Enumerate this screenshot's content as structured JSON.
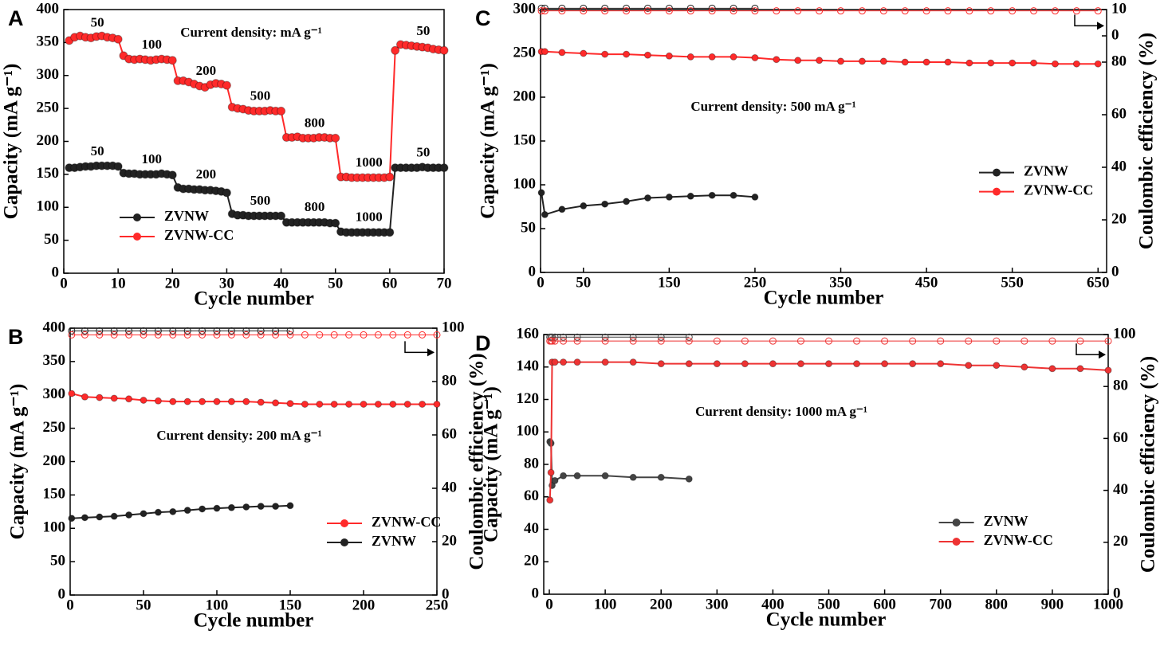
{
  "chart_data": [
    {
      "type": "line",
      "panel": "A",
      "annotation": "Current density: mA g⁻¹",
      "xlabel": "Cycle number",
      "ylabel": "Capacity (mA g⁻¹)",
      "xlim": [
        0,
        70
      ],
      "xticks": [
        0,
        10,
        20,
        30,
        40,
        50,
        60,
        70
      ],
      "ylim": [
        0,
        400
      ],
      "yticks": [
        0,
        50,
        100,
        150,
        200,
        250,
        300,
        350,
        400
      ],
      "legend": "lower left",
      "x": [
        1,
        2,
        3,
        4,
        5,
        6,
        7,
        8,
        9,
        10,
        11,
        12,
        13,
        14,
        15,
        16,
        17,
        18,
        19,
        20,
        21,
        22,
        23,
        24,
        25,
        26,
        27,
        28,
        29,
        30,
        31,
        32,
        33,
        34,
        35,
        36,
        37,
        38,
        39,
        40,
        41,
        42,
        43,
        44,
        45,
        46,
        47,
        48,
        49,
        50,
        51,
        52,
        53,
        54,
        55,
        56,
        57,
        58,
        59,
        60,
        61,
        62,
        63,
        64,
        65,
        66,
        67,
        68,
        69,
        70
      ],
      "series": [
        {
          "name": "ZVNW",
          "color": "#222222",
          "rate_labels": [
            50,
            100,
            200,
            500,
            800,
            1000,
            50
          ],
          "values": [
            160,
            160,
            161,
            162,
            162,
            163,
            163,
            163,
            163,
            162,
            152,
            151,
            151,
            150,
            150,
            150,
            150,
            151,
            150,
            149,
            130,
            128,
            128,
            127,
            127,
            126,
            126,
            125,
            124,
            122,
            90,
            88,
            88,
            87,
            87,
            87,
            87,
            87,
            87,
            87,
            77,
            77,
            77,
            77,
            77,
            77,
            77,
            77,
            76,
            76,
            63,
            62,
            62,
            62,
            62,
            62,
            62,
            62,
            62,
            62,
            160,
            160,
            160,
            160,
            160,
            161,
            160,
            160,
            160,
            160
          ]
        },
        {
          "name": "ZVNW-CC",
          "color": "#ff2a2a",
          "rate_labels": [
            50,
            100,
            200,
            500,
            800,
            1000,
            50
          ],
          "values": [
            353,
            358,
            360,
            358,
            357,
            359,
            360,
            358,
            357,
            355,
            330,
            325,
            324,
            325,
            324,
            323,
            324,
            325,
            324,
            323,
            292,
            292,
            290,
            287,
            284,
            282,
            286,
            288,
            287,
            285,
            252,
            250,
            249,
            247,
            246,
            246,
            246,
            247,
            246,
            246,
            206,
            206,
            207,
            205,
            205,
            205,
            206,
            206,
            205,
            205,
            146,
            146,
            145,
            145,
            145,
            145,
            145,
            145,
            145,
            146,
            338,
            347,
            346,
            345,
            344,
            343,
            342,
            340,
            339,
            338
          ]
        }
      ]
    },
    {
      "type": "line",
      "panel": "B",
      "annotation": "Current density: 200 mA g⁻¹",
      "xlabel": "Cycle number",
      "ylabel": "Capacity (mA g⁻¹)",
      "y2label": "Coulombic efficiency (%)",
      "xlim": [
        0,
        250
      ],
      "xticks": [
        0,
        50,
        100,
        150,
        200,
        250
      ],
      "ylim": [
        0,
        400
      ],
      "yticks": [
        0,
        50,
        100,
        150,
        200,
        250,
        300,
        350,
        400
      ],
      "y2lim": [
        0,
        100
      ],
      "y2ticks": [
        0,
        20,
        40,
        60,
        80,
        100
      ],
      "legend": "lower right",
      "x": [
        1,
        10,
        20,
        30,
        40,
        50,
        60,
        70,
        80,
        90,
        100,
        110,
        120,
        130,
        140,
        150,
        160,
        170,
        180,
        190,
        200,
        210,
        220,
        230,
        240,
        250
      ],
      "series": [
        {
          "name": "ZVNW-CC",
          "color": "#ff2a2a",
          "values": [
            302,
            297,
            296,
            295,
            294,
            292,
            291,
            290,
            290,
            290,
            290,
            290,
            290,
            289,
            288,
            287,
            286,
            286,
            286,
            286,
            286,
            286,
            286,
            286,
            286,
            286
          ],
          "ce": [
            97.5,
            97.5,
            97.5,
            97.5,
            97.5,
            97.5,
            97.5,
            97.5,
            97.5,
            97.5,
            97.5,
            97.5,
            97.5,
            97.5,
            97.5,
            97.5,
            97.5,
            97.5,
            97.5,
            97.5,
            97.5,
            97.5,
            97.5,
            97.5,
            97.5,
            97.5
          ]
        },
        {
          "name": "ZVNW",
          "color": "#222222",
          "values": [
            115,
            116,
            117,
            118,
            120,
            122,
            124,
            125,
            127,
            129,
            130,
            131,
            132,
            133,
            133,
            134,
            null,
            null,
            null,
            null,
            null,
            null,
            null,
            null,
            null,
            null
          ],
          "ce": [
            99,
            99,
            99,
            99,
            99,
            99,
            99,
            99,
            99,
            99,
            99,
            99,
            99,
            99,
            99,
            99,
            null,
            null,
            null,
            null,
            null,
            null,
            null,
            null,
            null,
            null
          ]
        }
      ]
    },
    {
      "type": "line",
      "panel": "C",
      "annotation": "Current density: 500 mA g⁻¹",
      "xlabel": "Cycle number",
      "ylabel": "Capacity (mA g⁻¹)",
      "y2label": "Coulombic efficiency (%)",
      "xlim": [
        0,
        660
      ],
      "xticks": [
        0,
        50,
        150,
        250,
        350,
        450,
        550,
        650
      ],
      "ylim": [
        0,
        300
      ],
      "yticks": [
        0,
        50,
        100,
        150,
        200,
        250,
        300
      ],
      "y2lim": [
        0,
        100
      ],
      "y2ticks": [
        0,
        20,
        40,
        60,
        80,
        {
          "value": 90,
          "label": "0"
        },
        {
          "value": 100,
          "label": "10"
        }
      ],
      "legend": "center right",
      "x": [
        1,
        5,
        25,
        50,
        75,
        100,
        125,
        150,
        175,
        200,
        225,
        250,
        275,
        300,
        325,
        350,
        375,
        400,
        425,
        450,
        475,
        500,
        525,
        550,
        575,
        600,
        625,
        650
      ],
      "series": [
        {
          "name": "ZVNW",
          "color": "#222222",
          "values": [
            91,
            66,
            72,
            76,
            78,
            81,
            85,
            86,
            87,
            88,
            88,
            86,
            null,
            null,
            null,
            null,
            null,
            null,
            null,
            null,
            null,
            null,
            null,
            null,
            null,
            null,
            null,
            null
          ],
          "ce": [
            100.5,
            100.5,
            100.5,
            100.5,
            100.5,
            100.5,
            100.5,
            100.5,
            100.5,
            100.5,
            100.5,
            100.5,
            null,
            null,
            null,
            null,
            null,
            null,
            null,
            null,
            null,
            null,
            null,
            null,
            null,
            null,
            null,
            null
          ]
        },
        {
          "name": "ZVNW-CC",
          "color": "#ff2a2a",
          "values": [
            252,
            252,
            251,
            250,
            249,
            249,
            248,
            247,
            246,
            246,
            246,
            245,
            243,
            242,
            242,
            241,
            241,
            241,
            240,
            240,
            240,
            239,
            239,
            239,
            239,
            238,
            238,
            238
          ],
          "ce": [
            99.5,
            99.5,
            99.5,
            99.5,
            99.5,
            99.5,
            99.5,
            99.5,
            99.5,
            99.5,
            99.5,
            99.5,
            99.5,
            99.5,
            99.5,
            99.5,
            99.5,
            99.5,
            99.5,
            99.5,
            99.5,
            99.5,
            99.5,
            99.5,
            99.5,
            99.5,
            99.5,
            99.5
          ]
        }
      ]
    },
    {
      "type": "line",
      "panel": "D",
      "annotation": "Current density: 1000 mA g⁻¹",
      "xlabel": "Cycle number",
      "ylabel": "Capacity (mA g⁻¹)",
      "y2label": "Coulombic efficiency (%)",
      "xlim": [
        -10,
        1000
      ],
      "xticks": [
        0,
        100,
        200,
        300,
        400,
        500,
        600,
        700,
        800,
        900,
        1000
      ],
      "ylim": [
        0,
        160
      ],
      "yticks": [
        0,
        20,
        40,
        60,
        80,
        100,
        120,
        140,
        160
      ],
      "y2lim": [
        0,
        100
      ],
      "y2ticks": [
        0,
        20,
        40,
        60,
        80,
        100
      ],
      "legend": "lower right",
      "x": [
        1,
        3,
        5,
        10,
        25,
        50,
        100,
        150,
        200,
        250,
        300,
        350,
        400,
        450,
        500,
        550,
        600,
        650,
        700,
        750,
        800,
        850,
        900,
        950,
        1000
      ],
      "series": [
        {
          "name": "ZVNW",
          "color": "#444444",
          "values": [
            94,
            93,
            67,
            70,
            73,
            73,
            73,
            72,
            72,
            71,
            null,
            null,
            null,
            null,
            null,
            null,
            null,
            null,
            null,
            null,
            null,
            null,
            null,
            null,
            null
          ],
          "ce": [
            99,
            99,
            99,
            99,
            99,
            99,
            99,
            99,
            99,
            99,
            null,
            null,
            null,
            null,
            null,
            null,
            null,
            null,
            null,
            null,
            null,
            null,
            null,
            null,
            null
          ]
        },
        {
          "name": "ZVNW-CC",
          "color": "#ee3333",
          "values": [
            58,
            75,
            143,
            143,
            143,
            143,
            143,
            143,
            142,
            142,
            142,
            142,
            142,
            142,
            142,
            142,
            142,
            142,
            142,
            141,
            141,
            140,
            139,
            139,
            138
          ],
          "ce": [
            97.5,
            97.5,
            97.5,
            97.5,
            97.5,
            97.5,
            97.5,
            97.5,
            97.5,
            97.5,
            97.5,
            97.5,
            97.5,
            97.5,
            97.5,
            97.5,
            97.5,
            97.5,
            97.5,
            97.5,
            97.5,
            97.5,
            97.5,
            97.5,
            97.5
          ]
        }
      ]
    }
  ]
}
